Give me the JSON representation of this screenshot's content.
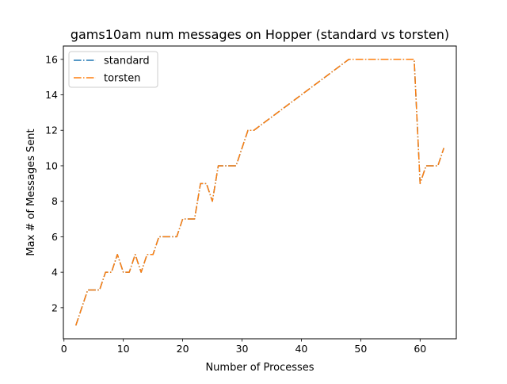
{
  "chart_data": {
    "type": "line",
    "title": "gams10am num messages on Hopper (standard vs torsten)",
    "xlabel": "Number of Processes",
    "ylabel": "Max # of Messages Sent",
    "xlim": [
      -0.1,
      66.1
    ],
    "ylim": [
      0.25,
      16.75
    ],
    "xticks": [
      0,
      10,
      20,
      30,
      40,
      50,
      60
    ],
    "yticks": [
      2,
      4,
      6,
      8,
      10,
      12,
      14,
      16
    ],
    "grid": false,
    "legend_position": "upper left",
    "x": [
      2,
      3,
      4,
      5,
      6,
      7,
      8,
      9,
      10,
      11,
      12,
      13,
      14,
      15,
      16,
      17,
      18,
      19,
      20,
      21,
      22,
      23,
      24,
      25,
      26,
      27,
      28,
      29,
      30,
      31,
      32,
      48,
      49,
      50,
      51,
      52,
      53,
      54,
      55,
      56,
      57,
      58,
      59,
      60,
      61,
      62,
      63,
      64
    ],
    "series": [
      {
        "name": "standard",
        "color": "#1f77b4",
        "linestyle": "dashdot",
        "values": [
          1,
          2,
          3,
          3,
          3,
          4,
          4,
          5,
          4,
          4,
          5,
          4,
          5,
          5,
          6,
          6,
          6,
          6,
          7,
          7,
          7,
          9,
          9,
          8,
          10,
          10,
          10,
          10,
          11,
          12,
          12,
          16,
          16,
          16,
          16,
          16,
          16,
          16,
          16,
          16,
          16,
          16,
          16,
          9,
          10,
          10,
          10,
          11
        ]
      },
      {
        "name": "torsten",
        "color": "#ff7f0e",
        "linestyle": "dashdot",
        "values": [
          1,
          2,
          3,
          3,
          3,
          4,
          4,
          5,
          4,
          4,
          5,
          4,
          5,
          5,
          6,
          6,
          6,
          6,
          7,
          7,
          7,
          9,
          9,
          8,
          10,
          10,
          10,
          10,
          11,
          12,
          12,
          16,
          16,
          16,
          16,
          16,
          16,
          16,
          16,
          16,
          16,
          16,
          16,
          9,
          10,
          10,
          10,
          11
        ]
      }
    ]
  }
}
